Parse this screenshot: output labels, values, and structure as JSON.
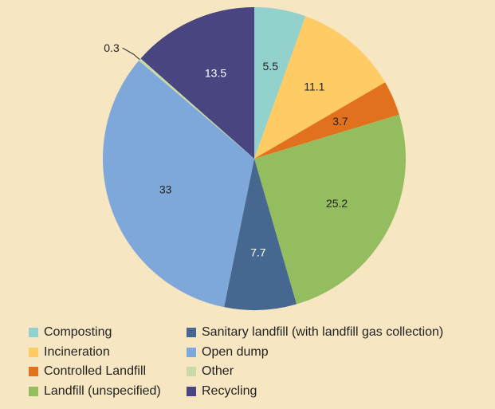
{
  "chart_data": {
    "type": "pie",
    "title": "",
    "slices": [
      {
        "label": "Composting",
        "value": 5.5,
        "value_label": "5.5",
        "color": "#93d1cd",
        "label_color": "#222222"
      },
      {
        "label": "Incineration",
        "value": 11.1,
        "value_label": "11.1",
        "color": "#fecb65",
        "label_color": "#222222"
      },
      {
        "label": "Controlled Landfill",
        "value": 3.7,
        "value_label": "3.7",
        "color": "#e2711d",
        "label_color": "#222222"
      },
      {
        "label": "Landfill (unspecified)",
        "value": 25.2,
        "value_label": "25.2",
        "color": "#94bd60",
        "label_color": "#222222"
      },
      {
        "label": "Sanitary landfill (with landfill gas collection)",
        "value": 7.7,
        "value_label": "7.7",
        "color": "#46678f",
        "label_color": "#ffffff"
      },
      {
        "label": "Open dump",
        "value": 33,
        "value_label": "33",
        "color": "#7fa8da",
        "label_color": "#222222"
      },
      {
        "label": "Other",
        "value": 0.3,
        "value_label": "0.3",
        "color": "#c7daa8",
        "label_color": "#222222"
      },
      {
        "label": "Recycling",
        "value": 13.5,
        "value_label": "13.5",
        "color": "#494580",
        "label_color": "#ffffff"
      }
    ],
    "legend": {
      "placement": "bottom",
      "columns": [
        [
          "Composting",
          "Incineration",
          "Controlled Landfill",
          "Landfill (unspecified)"
        ],
        [
          "Sanitary landfill (with landfill gas collection)",
          "Open dump",
          "Other",
          "Recycling"
        ]
      ]
    }
  }
}
